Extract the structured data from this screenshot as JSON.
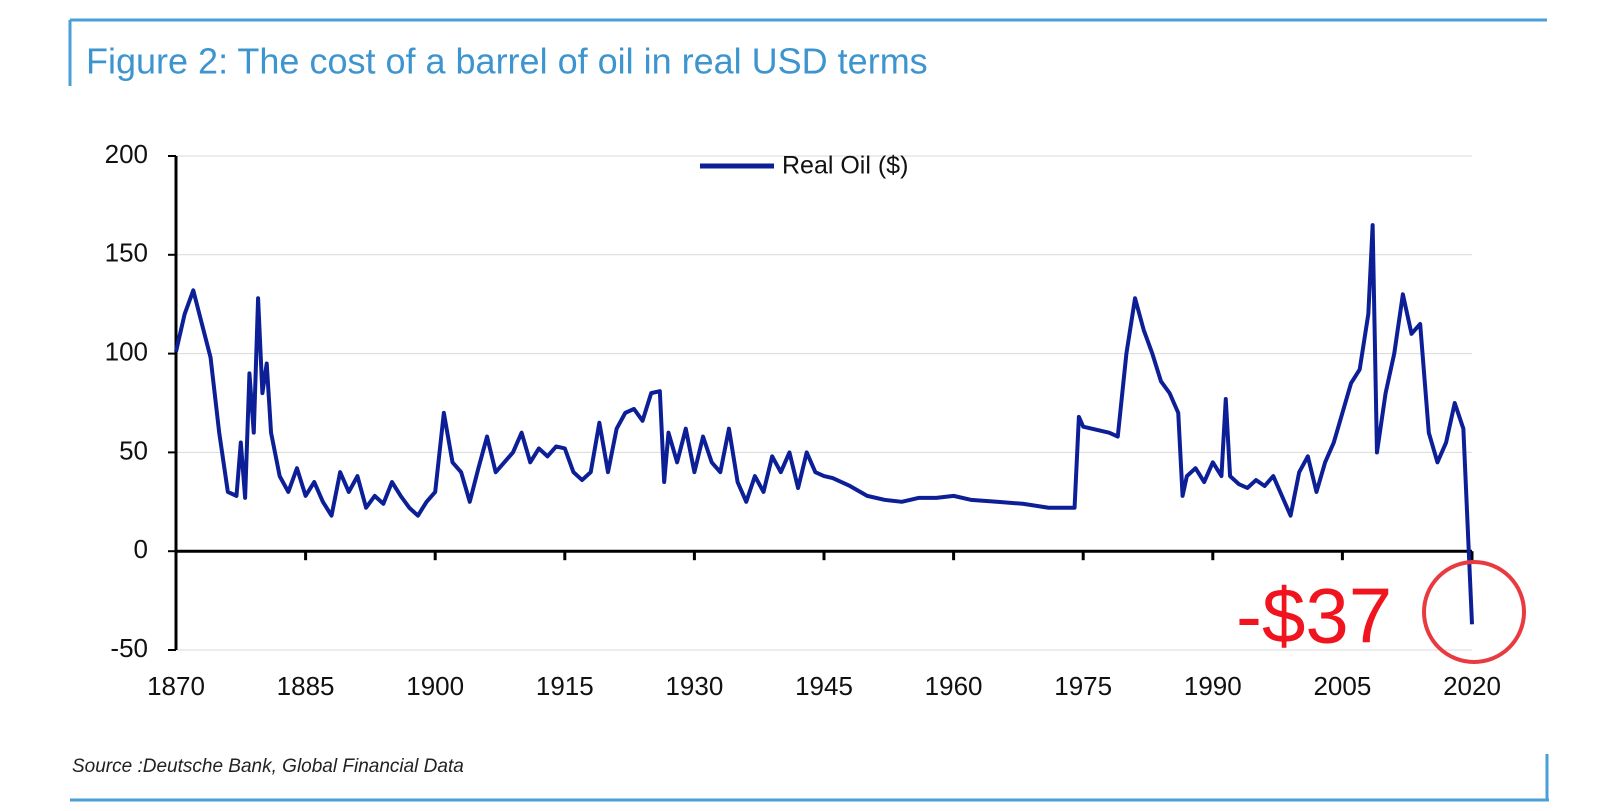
{
  "chart_data": {
    "type": "line",
    "title": "Figure 2: The cost of a barrel of oil in real USD terms",
    "source": "Source :Deutsche Bank, Global Financial Data",
    "annotation": "-$37",
    "x": [
      1870,
      1871,
      1872,
      1873,
      1874,
      1875,
      1876,
      1877,
      1877.5,
      1878,
      1878.5,
      1879,
      1879.5,
      1880,
      1880.5,
      1881,
      1882,
      1883,
      1884,
      1885,
      1886,
      1887,
      1888,
      1889,
      1890,
      1891,
      1892,
      1893,
      1894,
      1895,
      1896,
      1897,
      1898,
      1899,
      1900,
      1901,
      1902,
      1903,
      1904,
      1905,
      1906,
      1907,
      1908,
      1909,
      1910,
      1911,
      1912,
      1913,
      1914,
      1915,
      1916,
      1917,
      1918,
      1919,
      1920,
      1921,
      1922,
      1923,
      1924,
      1925,
      1926,
      1926.5,
      1927,
      1928,
      1929,
      1930,
      1931,
      1932,
      1933,
      1934,
      1935,
      1936,
      1937,
      1938,
      1939,
      1940,
      1941,
      1942,
      1943,
      1944,
      1945,
      1946,
      1948,
      1950,
      1952,
      1954,
      1956,
      1958,
      1960,
      1962,
      1965,
      1968,
      1971,
      1974,
      1974.5,
      1975,
      1978,
      1979,
      1980,
      1981,
      1982,
      1983,
      1984,
      1985,
      1986,
      1986.5,
      1987,
      1988,
      1989,
      1990,
      1991,
      1991.5,
      1992,
      1993,
      1994,
      1995,
      1996,
      1997,
      1998,
      1999,
      2000,
      2001,
      2002,
      2003,
      2004,
      2005,
      2006,
      2007,
      2008,
      2008.5,
      2009,
      2010,
      2011,
      2012,
      2013,
      2014,
      2015,
      2016,
      2017,
      2018,
      2019,
      2020
    ],
    "series": [
      {
        "name": "Real Oil ($)",
        "color": "#0c1f96",
        "values": [
          101,
          120,
          132,
          115,
          98,
          60,
          30,
          28,
          55,
          27,
          90,
          60,
          128,
          80,
          95,
          60,
          38,
          30,
          42,
          28,
          35,
          25,
          18,
          40,
          30,
          38,
          22,
          28,
          24,
          35,
          28,
          22,
          18,
          25,
          30,
          70,
          45,
          40,
          25,
          42,
          58,
          40,
          45,
          50,
          60,
          45,
          52,
          48,
          53,
          52,
          40,
          36,
          40,
          65,
          40,
          62,
          70,
          72,
          66,
          80,
          81,
          35,
          60,
          45,
          62,
          40,
          58,
          45,
          40,
          62,
          35,
          25,
          38,
          30,
          48,
          40,
          50,
          32,
          50,
          40,
          38,
          37,
          33,
          28,
          26,
          25,
          27,
          27,
          28,
          26,
          25,
          24,
          22,
          22,
          68,
          63,
          60,
          58,
          100,
          128,
          112,
          100,
          86,
          80,
          70,
          28,
          38,
          42,
          35,
          45,
          38,
          77,
          38,
          34,
          32,
          36,
          33,
          38,
          28,
          18,
          40,
          48,
          30,
          45,
          55,
          70,
          85,
          92,
          120,
          165,
          50,
          80,
          100,
          130,
          110,
          115,
          60,
          45,
          55,
          75,
          62,
          -37
        ]
      }
    ],
    "xlim": [
      1870,
      2020
    ],
    "ylim": [
      -50,
      200
    ],
    "xticks": [
      1870,
      1885,
      1900,
      1915,
      1930,
      1945,
      1960,
      1975,
      1990,
      2005,
      2020
    ],
    "yticks": [
      -50,
      0,
      50,
      100,
      150,
      200
    ],
    "grid": true
  }
}
